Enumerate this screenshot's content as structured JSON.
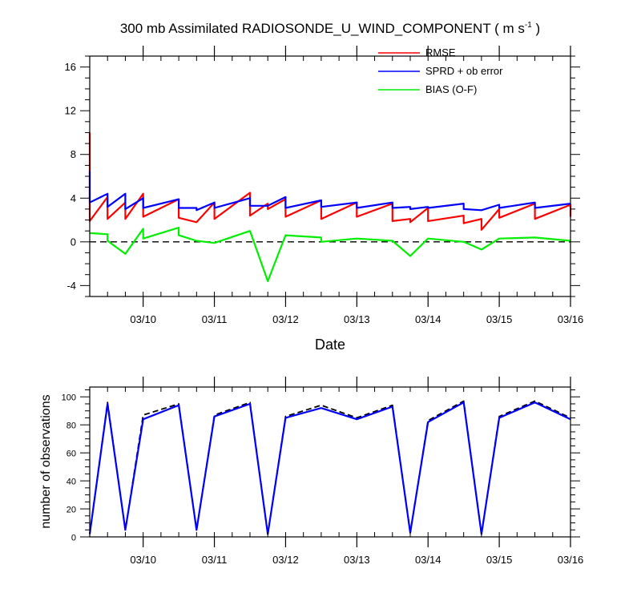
{
  "title": {
    "main": "300 mb Assimilated RADIOSONDE_U_WIND_COMPONENT ( m s",
    "sup": "-1",
    "close": " )"
  },
  "colors": {
    "rmse": "#ff0000",
    "sprd": "#0000ff",
    "bias": "#00ee00",
    "obs_used": "#0000ff",
    "obs_possible": "#000000",
    "zero_line": "#000000"
  },
  "chart_data": [
    {
      "type": "line",
      "xlabel": "Date",
      "ylabel": "",
      "x_range_days": [
        0,
        6.75
      ],
      "x_ticks": [
        {
          "day": 0.75,
          "label": "03/10"
        },
        {
          "day": 1.75,
          "label": "03/11"
        },
        {
          "day": 2.75,
          "label": "03/12"
        },
        {
          "day": 3.75,
          "label": "03/13"
        },
        {
          "day": 4.75,
          "label": "03/14"
        },
        {
          "day": 5.75,
          "label": "03/15"
        },
        {
          "day": 6.75,
          "label": "03/16"
        }
      ],
      "ylim": [
        -5,
        17
      ],
      "yticks": [
        "-4",
        "0",
        "4",
        "8",
        "12",
        "16"
      ],
      "legend": [
        "RMSE",
        "SPRD + ob error",
        "BIAS (O-F)"
      ],
      "legend_position": "top-right",
      "zero_line": true,
      "series": [
        {
          "name": "RMSE",
          "points": [
            [
              0,
              10.0
            ],
            [
              0,
              1.9
            ],
            [
              0.25,
              4.1
            ],
            [
              0.25,
              2.1
            ],
            [
              0.5,
              3.6
            ],
            [
              0.5,
              2.1
            ],
            [
              0.75,
              4.4
            ],
            [
              0.75,
              2.3
            ],
            [
              1.25,
              3.9
            ],
            [
              1.25,
              2.2
            ],
            [
              1.5,
              1.8
            ],
            [
              1.75,
              3.6
            ],
            [
              1.75,
              2.1
            ],
            [
              2.25,
              4.5
            ],
            [
              2.25,
              2.4
            ],
            [
              2.5,
              3.5
            ],
            [
              2.5,
              3.0
            ],
            [
              2.75,
              3.9
            ],
            [
              2.75,
              2.3
            ],
            [
              3.25,
              3.8
            ],
            [
              3.25,
              2.1
            ],
            [
              3.75,
              3.6
            ],
            [
              3.75,
              2.3
            ],
            [
              4.25,
              3.5
            ],
            [
              4.25,
              1.9
            ],
            [
              4.5,
              2.1
            ],
            [
              4.5,
              1.8
            ],
            [
              4.75,
              3.1
            ],
            [
              4.75,
              1.9
            ],
            [
              5.25,
              2.4
            ],
            [
              5.25,
              1.7
            ],
            [
              5.5,
              2.1
            ],
            [
              5.5,
              1.1
            ],
            [
              5.75,
              3.0
            ],
            [
              5.75,
              2.2
            ],
            [
              6.25,
              3.5
            ],
            [
              6.25,
              2.1
            ],
            [
              6.75,
              3.4
            ],
            [
              6.75,
              2.3
            ]
          ]
        },
        {
          "name": "SPRD + ob error",
          "points": [
            [
              0,
              6.5
            ],
            [
              0,
              3.6
            ],
            [
              0.25,
              4.4
            ],
            [
              0.25,
              3.2
            ],
            [
              0.5,
              4.4
            ],
            [
              0.5,
              3.0
            ],
            [
              0.75,
              4.0
            ],
            [
              0.75,
              3.1
            ],
            [
              1.25,
              3.9
            ],
            [
              1.25,
              3.1
            ],
            [
              1.5,
              3.1
            ],
            [
              1.5,
              2.9
            ],
            [
              1.75,
              3.6
            ],
            [
              1.75,
              3.1
            ],
            [
              2.25,
              4.0
            ],
            [
              2.25,
              3.3
            ],
            [
              2.5,
              3.3
            ],
            [
              2.75,
              4.1
            ],
            [
              2.75,
              3.1
            ],
            [
              3.25,
              3.8
            ],
            [
              3.25,
              3.2
            ],
            [
              3.75,
              3.6
            ],
            [
              3.75,
              3.1
            ],
            [
              4.25,
              3.6
            ],
            [
              4.25,
              3.1
            ],
            [
              4.5,
              3.2
            ],
            [
              4.5,
              3.0
            ],
            [
              4.75,
              3.2
            ],
            [
              4.75,
              3.1
            ],
            [
              5.25,
              3.5
            ],
            [
              5.25,
              3.0
            ],
            [
              5.5,
              2.9
            ],
            [
              5.75,
              3.4
            ],
            [
              5.75,
              3.1
            ],
            [
              6.25,
              3.6
            ],
            [
              6.25,
              3.1
            ],
            [
              6.75,
              3.5
            ]
          ]
        },
        {
          "name": "BIAS (O-F)",
          "points": [
            [
              0,
              0.8
            ],
            [
              0.25,
              0.7
            ],
            [
              0.25,
              0.1
            ],
            [
              0.5,
              -1.1
            ],
            [
              0.75,
              1.2
            ],
            [
              0.75,
              0.3
            ],
            [
              1.25,
              1.3
            ],
            [
              1.25,
              0.6
            ],
            [
              1.5,
              0.1
            ],
            [
              1.75,
              -0.1
            ],
            [
              2.25,
              1.0
            ],
            [
              2.5,
              -3.6
            ],
            [
              2.75,
              0.6
            ],
            [
              3.25,
              0.4
            ],
            [
              3.25,
              0.0
            ],
            [
              3.75,
              0.3
            ],
            [
              4.25,
              0.1
            ],
            [
              4.5,
              -1.3
            ],
            [
              4.75,
              0.3
            ],
            [
              5.25,
              0.0
            ],
            [
              5.5,
              -0.7
            ],
            [
              5.75,
              0.3
            ],
            [
              6.25,
              0.4
            ],
            [
              6.75,
              0.1
            ]
          ]
        }
      ]
    },
    {
      "type": "line",
      "xlabel": "",
      "ylabel": "number of observations",
      "x_range_days": [
        0,
        6.75
      ],
      "x_ticks": [
        {
          "day": 0.75,
          "label": "03/10"
        },
        {
          "day": 1.75,
          "label": "03/11"
        },
        {
          "day": 2.75,
          "label": "03/12"
        },
        {
          "day": 3.75,
          "label": "03/13"
        },
        {
          "day": 4.75,
          "label": "03/14"
        },
        {
          "day": 5.75,
          "label": "03/15"
        },
        {
          "day": 6.75,
          "label": "03/16"
        }
      ],
      "ylim": [
        0,
        107
      ],
      "yticks": [
        "0",
        "20",
        "40",
        "60",
        "80",
        "100"
      ],
      "series": [
        {
          "style": "dashed",
          "points": [
            [
              0,
              2
            ],
            [
              0.25,
              96
            ],
            [
              0.5,
              5
            ],
            [
              0.75,
              87
            ],
            [
              1.25,
              95
            ],
            [
              1.5,
              5
            ],
            [
              1.75,
              87
            ],
            [
              2.25,
              96
            ],
            [
              2.5,
              2
            ],
            [
              2.75,
              86
            ],
            [
              3.25,
              94
            ],
            [
              3.75,
              85
            ],
            [
              4.25,
              94
            ],
            [
              4.5,
              3
            ],
            [
              4.75,
              83
            ],
            [
              5.25,
              97
            ],
            [
              5.5,
              2
            ],
            [
              5.75,
              86
            ],
            [
              6.25,
              97
            ],
            [
              6.75,
              85
            ]
          ]
        },
        {
          "style": "solid",
          "points": [
            [
              0,
              2
            ],
            [
              0.25,
              95
            ],
            [
              0.5,
              5
            ],
            [
              0.75,
              84
            ],
            [
              1.25,
              94
            ],
            [
              1.5,
              5
            ],
            [
              1.75,
              86
            ],
            [
              2.25,
              95
            ],
            [
              2.5,
              2
            ],
            [
              2.75,
              85
            ],
            [
              3.25,
              92
            ],
            [
              3.75,
              84
            ],
            [
              4.25,
              93
            ],
            [
              4.5,
              3
            ],
            [
              4.75,
              82
            ],
            [
              5.25,
              96
            ],
            [
              5.5,
              2
            ],
            [
              5.75,
              85
            ],
            [
              6.25,
              96
            ],
            [
              6.75,
              84
            ]
          ]
        }
      ]
    }
  ]
}
